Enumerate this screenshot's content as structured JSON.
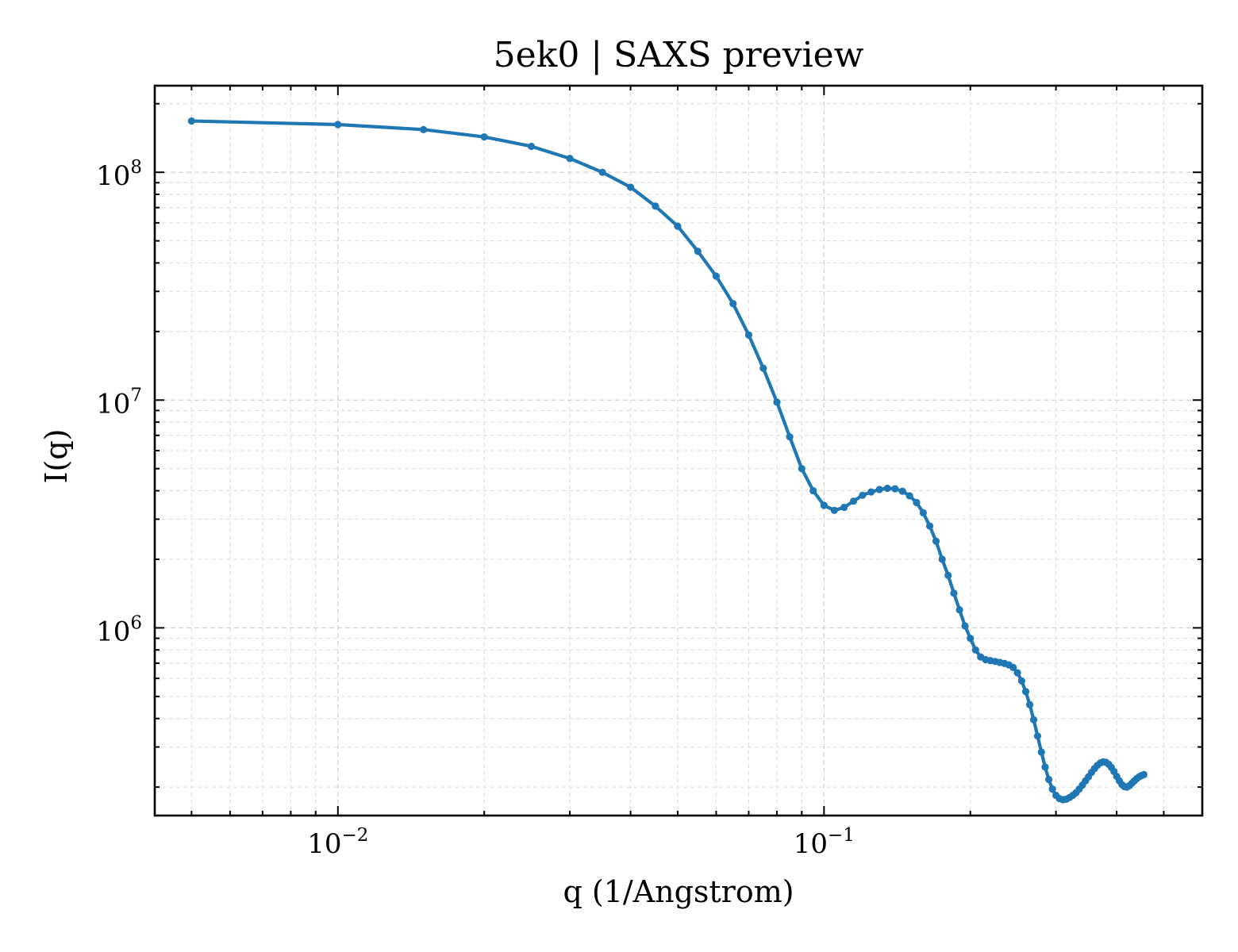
{
  "chart_data": {
    "type": "line",
    "title": "5ek0 | SAXS preview",
    "xlabel": "q (1/Angstrom)",
    "ylabel": "I(q)",
    "xscale": "log",
    "yscale": "log",
    "xlim": [
      0.0042,
      0.6
    ],
    "ylim": [
      150000,
      240000000
    ],
    "x_major_ticks": [
      {
        "value": 0.01,
        "base": "10",
        "exp": "−2"
      },
      {
        "value": 0.1,
        "base": "10",
        "exp": "−1"
      }
    ],
    "y_major_ticks": [
      {
        "value": 1000000,
        "base": "10",
        "exp": "6"
      },
      {
        "value": 10000000,
        "base": "10",
        "exp": "7"
      },
      {
        "value": 100000000,
        "base": "10",
        "exp": "8"
      }
    ],
    "grid": "both (major and minor), dashed",
    "colors": {
      "series": "#1f77b4"
    },
    "series": [
      {
        "marker": "dot",
        "points": [
          [
            0.005,
            168000000
          ],
          [
            0.01,
            162000000
          ],
          [
            0.015,
            154000000
          ],
          [
            0.02,
            143000000
          ],
          [
            0.025,
            130000000
          ],
          [
            0.03,
            115000000
          ],
          [
            0.035,
            100000000
          ],
          [
            0.04,
            86000000
          ],
          [
            0.045,
            71000000
          ],
          [
            0.05,
            58000000
          ],
          [
            0.055,
            45000000
          ],
          [
            0.06,
            35000000
          ],
          [
            0.065,
            26500000
          ],
          [
            0.07,
            19300000
          ],
          [
            0.075,
            13800000
          ],
          [
            0.08,
            9800000
          ],
          [
            0.085,
            6900000
          ],
          [
            0.09,
            5000000
          ],
          [
            0.095,
            4000000
          ],
          [
            0.1,
            3450000
          ],
          [
            0.105,
            3280000
          ],
          [
            0.11,
            3380000
          ],
          [
            0.115,
            3600000
          ],
          [
            0.12,
            3820000
          ],
          [
            0.125,
            3950000
          ],
          [
            0.13,
            4050000
          ],
          [
            0.135,
            4100000
          ],
          [
            0.14,
            4080000
          ],
          [
            0.145,
            3980000
          ],
          [
            0.15,
            3800000
          ],
          [
            0.155,
            3550000
          ],
          [
            0.16,
            3200000
          ],
          [
            0.165,
            2800000
          ],
          [
            0.17,
            2400000
          ],
          [
            0.175,
            2000000
          ],
          [
            0.18,
            1700000
          ],
          [
            0.185,
            1420000
          ],
          [
            0.19,
            1200000
          ],
          [
            0.195,
            1020000
          ],
          [
            0.2,
            900000
          ],
          [
            0.205,
            800000
          ],
          [
            0.21,
            745000
          ],
          [
            0.215,
            725000
          ],
          [
            0.22,
            718000
          ],
          [
            0.225,
            712000
          ],
          [
            0.23,
            705000
          ],
          [
            0.235,
            698000
          ],
          [
            0.24,
            688000
          ],
          [
            0.245,
            670000
          ],
          [
            0.25,
            635000
          ],
          [
            0.255,
            585000
          ],
          [
            0.26,
            525000
          ],
          [
            0.265,
            460000
          ],
          [
            0.27,
            395000
          ],
          [
            0.275,
            335000
          ],
          [
            0.28,
            285000
          ],
          [
            0.285,
            245000
          ],
          [
            0.29,
            216000
          ],
          [
            0.295,
            196000
          ],
          [
            0.3,
            184000
          ],
          [
            0.305,
            178000
          ],
          [
            0.31,
            176000
          ],
          [
            0.315,
            177000
          ],
          [
            0.32,
            180000
          ],
          [
            0.325,
            184000
          ],
          [
            0.33,
            189000
          ],
          [
            0.335,
            196000
          ],
          [
            0.34,
            204000
          ],
          [
            0.345,
            213000
          ],
          [
            0.35,
            222000
          ],
          [
            0.355,
            232000
          ],
          [
            0.36,
            241000
          ],
          [
            0.365,
            249000
          ],
          [
            0.37,
            255000
          ],
          [
            0.375,
            258000
          ],
          [
            0.38,
            257000
          ],
          [
            0.385,
            252000
          ],
          [
            0.39,
            244000
          ],
          [
            0.395,
            234000
          ],
          [
            0.4,
            223000
          ],
          [
            0.405,
            213000
          ],
          [
            0.41,
            205000
          ],
          [
            0.415,
            201000
          ],
          [
            0.42,
            200000
          ],
          [
            0.425,
            203000
          ],
          [
            0.43,
            208000
          ],
          [
            0.435,
            213000
          ],
          [
            0.44,
            218000
          ],
          [
            0.445,
            222000
          ],
          [
            0.45,
            225000
          ],
          [
            0.455,
            227000
          ]
        ]
      }
    ]
  }
}
